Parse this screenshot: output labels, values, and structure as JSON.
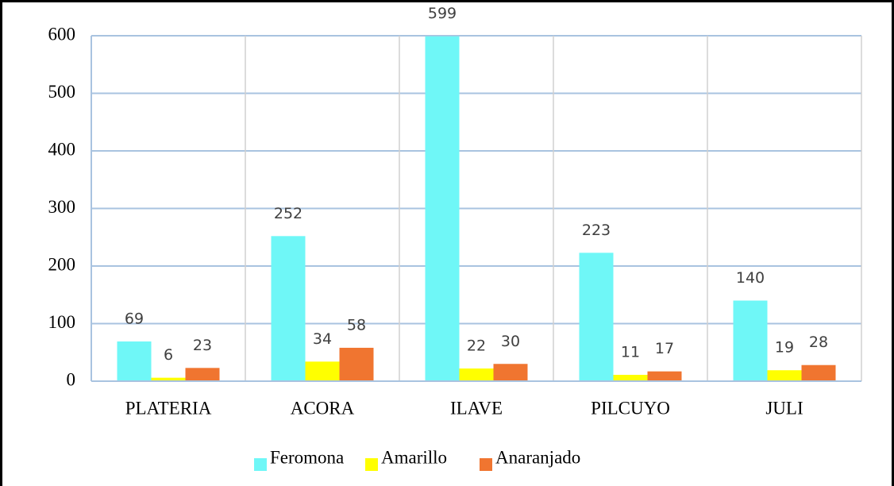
{
  "chart_data": {
    "type": "bar",
    "categories": [
      "PLATERIA",
      "ACORA",
      "ILAVE",
      "PILCUYO",
      "JULI"
    ],
    "series": [
      {
        "name": "Feromona",
        "color": "#6ff7f7",
        "values": [
          69,
          252,
          599,
          223,
          140
        ]
      },
      {
        "name": "Amarillo",
        "color": "#ffff00",
        "values": [
          6,
          34,
          22,
          11,
          19
        ]
      },
      {
        "name": "Anaranjado",
        "color": "#f07530",
        "values": [
          23,
          58,
          30,
          17,
          28
        ]
      }
    ],
    "ylim": [
      0,
      600
    ],
    "yticks": [
      0,
      100,
      200,
      300,
      400,
      500,
      600
    ],
    "grid": true,
    "legend": "bottom"
  }
}
